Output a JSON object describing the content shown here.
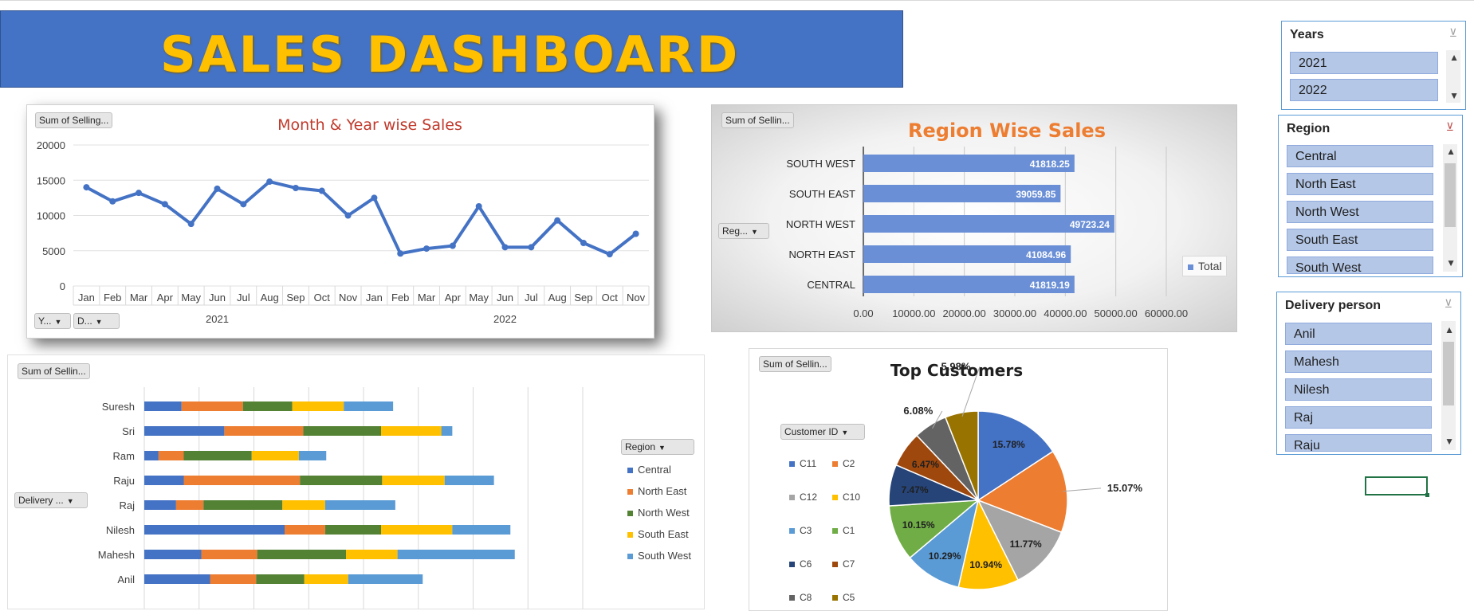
{
  "title": "SALES DASHBOARD",
  "line_chart": {
    "field_button": "Sum of Selling...",
    "title": "Month & Year wise Sales",
    "filter_years": "Y...",
    "filter_delivery": "D...",
    "ytick_labels": [
      "20000",
      "15000",
      "10000",
      "5000",
      "0"
    ],
    "year_labels": [
      "2021",
      "2022"
    ]
  },
  "bar_chart": {
    "field_button": "Sum of Sellin...",
    "title": "Region Wise Sales",
    "row_field": "Reg...",
    "legend": "Total",
    "xtick_labels": [
      "0.00",
      "10000.00",
      "20000.00",
      "30000.00",
      "40000.00",
      "50000.00",
      "60000.00"
    ]
  },
  "stacked_chart": {
    "field_button": "Sum of Sellin...",
    "row_field": "Delivery ...",
    "legend_field": "Region"
  },
  "pie_chart": {
    "field_button": "Sum of Sellin...",
    "title": "Top Customers",
    "legend_field": "Customer ID"
  },
  "slicers": {
    "years": {
      "title": "Years",
      "items": [
        "2021",
        "2022"
      ]
    },
    "region": {
      "title": "Region",
      "items": [
        "Central",
        "North East",
        "North West",
        "South East",
        "South West"
      ]
    },
    "delivery": {
      "title": "Delivery person",
      "items": [
        "Anil",
        "Mahesh",
        "Nilesh",
        "Raj",
        "Raju"
      ]
    }
  },
  "chart_data": [
    {
      "type": "line",
      "title": "Month & Year wise Sales",
      "categories": [
        "Jan",
        "Feb",
        "Mar",
        "Apr",
        "May",
        "Jun",
        "Jul",
        "Aug",
        "Sep",
        "Oct",
        "Nov",
        "Jan",
        "Feb",
        "Mar",
        "Apr",
        "May",
        "Jun",
        "Jul",
        "Aug",
        "Sep",
        "Oct",
        "Nov"
      ],
      "groups": [
        {
          "name": "2021",
          "count": 11
        },
        {
          "name": "2022",
          "count": 11
        }
      ],
      "values": [
        14000,
        12000,
        13200,
        11600,
        8800,
        13800,
        11600,
        14800,
        13900,
        13500,
        10000,
        12500,
        4600,
        5300,
        5700,
        11300,
        5500,
        5500,
        9300,
        6100,
        4500,
        7400
      ],
      "ylim": [
        0,
        20000
      ],
      "yticks": [
        0,
        5000,
        10000,
        15000,
        20000
      ],
      "color": "#4472c4",
      "grid": true
    },
    {
      "type": "bar",
      "orientation": "horizontal",
      "title": "Region Wise Sales",
      "categories": [
        "SOUTH WEST",
        "SOUTH EAST",
        "NORTH WEST",
        "NORTH EAST",
        "CENTRAL"
      ],
      "values": [
        41818.25,
        39059.85,
        49723.24,
        41084.96,
        41819.19
      ],
      "labels": [
        "41818.25",
        "39059.85",
        "49723.24",
        "41084.96",
        "41819.19"
      ],
      "xlim": [
        0,
        60000
      ],
      "legend": "Total",
      "color": "#6a8fd6",
      "grid": true
    },
    {
      "type": "bar",
      "orientation": "horizontal-stacked",
      "categories": [
        "Suresh",
        "Sri",
        "Ram",
        "Raju",
        "Raj",
        "Nilesh",
        "Mahesh",
        "Anil"
      ],
      "series": [
        {
          "name": "Central",
          "color": "#4472c4",
          "values": [
            3400,
            7300,
            1300,
            3600,
            2900,
            12800,
            5200,
            6000
          ]
        },
        {
          "name": "North East",
          "color": "#ed7d31",
          "values": [
            5600,
            7200,
            2300,
            10600,
            2500,
            3700,
            5100,
            4200
          ]
        },
        {
          "name": "North West",
          "color": "#548235",
          "values": [
            4500,
            7100,
            6200,
            7500,
            7200,
            5100,
            8100,
            4400
          ]
        },
        {
          "name": "South East",
          "color": "#ffc000",
          "values": [
            4700,
            5500,
            4300,
            5700,
            3900,
            6500,
            4700,
            4000
          ]
        },
        {
          "name": "South West",
          "color": "#5b9bd5",
          "values": [
            4500,
            1000,
            2500,
            4500,
            6400,
            5300,
            10700,
            6800
          ]
        }
      ],
      "xlim": [
        0,
        40000
      ],
      "legend_title": "Region",
      "grid": true
    },
    {
      "type": "pie",
      "title": "Top Customers",
      "labels": [
        "C11",
        "C2",
        "C12",
        "C10",
        "C3",
        "C1",
        "C6",
        "C7",
        "C8",
        "C5"
      ],
      "values": [
        15.78,
        15.07,
        11.77,
        10.94,
        10.29,
        10.15,
        7.47,
        6.47,
        6.08,
        5.98
      ],
      "value_labels": [
        "15.78%",
        "15.07%",
        "11.77%",
        "10.94%",
        "10.29%",
        "10.15%",
        "7.47%",
        "6.47%",
        "6.08%",
        "5.98%"
      ],
      "colors": [
        "#4472c4",
        "#ed7d31",
        "#a5a5a5",
        "#ffc000",
        "#5b9bd5",
        "#70ad47",
        "#264478",
        "#9e480e",
        "#636363",
        "#997300"
      ],
      "legend_title": "Customer ID"
    }
  ]
}
